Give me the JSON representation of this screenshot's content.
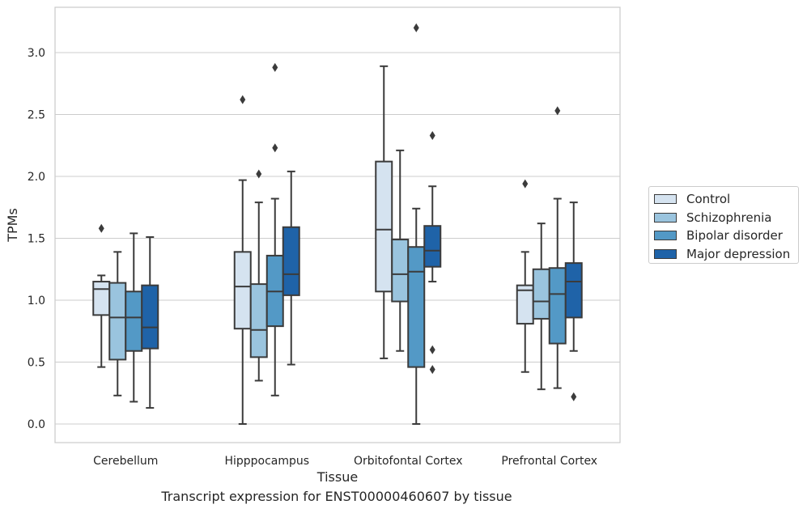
{
  "caption": "Transcript expression for ENST00000460607 by tissue",
  "chart_data": {
    "type": "boxplot",
    "title": "",
    "xlabel": "Tissue",
    "ylabel": "TPMs",
    "ylim": [
      -0.15,
      3.35
    ],
    "yticks": [
      "0.0",
      "0.5",
      "1.0",
      "1.5",
      "2.0",
      "2.5",
      "3.0"
    ],
    "grid": "horizontal",
    "legend_position": "right",
    "categories": [
      "Cerebellum",
      "Hipppocampus",
      "Orbitofontal Cortex",
      "Prefrontal Cortex"
    ],
    "series": [
      {
        "name": "Control",
        "color": "#d5e3f0",
        "boxes": [
          {
            "whislo": 0.46,
            "q1": 0.88,
            "med": 1.09,
            "q3": 1.15,
            "whishi": 1.2,
            "fliers": [
              1.58
            ]
          },
          {
            "whislo": 0.0,
            "q1": 0.77,
            "med": 1.11,
            "q3": 1.39,
            "whishi": 1.97,
            "fliers": [
              2.62
            ]
          },
          {
            "whislo": 0.53,
            "q1": 1.07,
            "med": 1.57,
            "q3": 2.12,
            "whishi": 2.89,
            "fliers": []
          },
          {
            "whislo": 0.42,
            "q1": 0.81,
            "med": 1.08,
            "q3": 1.12,
            "whishi": 1.39,
            "fliers": [
              1.94
            ]
          }
        ]
      },
      {
        "name": "Schizophrenia",
        "color": "#9ac4de",
        "boxes": [
          {
            "whislo": 0.23,
            "q1": 0.52,
            "med": 0.86,
            "q3": 1.14,
            "whishi": 1.39,
            "fliers": []
          },
          {
            "whislo": 0.35,
            "q1": 0.54,
            "med": 0.76,
            "q3": 1.13,
            "whishi": 1.79,
            "fliers": [
              2.02
            ]
          },
          {
            "whislo": 0.59,
            "q1": 0.99,
            "med": 1.21,
            "q3": 1.49,
            "whishi": 2.21,
            "fliers": []
          },
          {
            "whislo": 0.28,
            "q1": 0.85,
            "med": 0.99,
            "q3": 1.25,
            "whishi": 1.62,
            "fliers": []
          }
        ]
      },
      {
        "name": "Bipolar disorder",
        "color": "#5399c6",
        "boxes": [
          {
            "whislo": 0.18,
            "q1": 0.59,
            "med": 0.86,
            "q3": 1.07,
            "whishi": 1.54,
            "fliers": []
          },
          {
            "whislo": 0.23,
            "q1": 0.79,
            "med": 1.07,
            "q3": 1.36,
            "whishi": 1.82,
            "fliers": [
              2.23,
              2.88
            ]
          },
          {
            "whislo": 0.0,
            "q1": 0.46,
            "med": 1.23,
            "q3": 1.43,
            "whishi": 1.74,
            "fliers": [
              3.2
            ]
          },
          {
            "whislo": 0.29,
            "q1": 0.65,
            "med": 1.05,
            "q3": 1.26,
            "whishi": 1.82,
            "fliers": [
              2.53
            ]
          }
        ]
      },
      {
        "name": "Major depression",
        "color": "#1f63a8",
        "boxes": [
          {
            "whislo": 0.13,
            "q1": 0.61,
            "med": 0.78,
            "q3": 1.12,
            "whishi": 1.51,
            "fliers": []
          },
          {
            "whislo": 0.48,
            "q1": 1.04,
            "med": 1.21,
            "q3": 1.59,
            "whishi": 2.04,
            "fliers": []
          },
          {
            "whislo": 1.15,
            "q1": 1.27,
            "med": 1.4,
            "q3": 1.6,
            "whishi": 1.92,
            "fliers": [
              0.44,
              0.6,
              2.33
            ]
          },
          {
            "whislo": 0.59,
            "q1": 0.86,
            "med": 1.15,
            "q3": 1.3,
            "whishi": 1.79,
            "fliers": [
              0.22
            ]
          }
        ]
      }
    ]
  }
}
